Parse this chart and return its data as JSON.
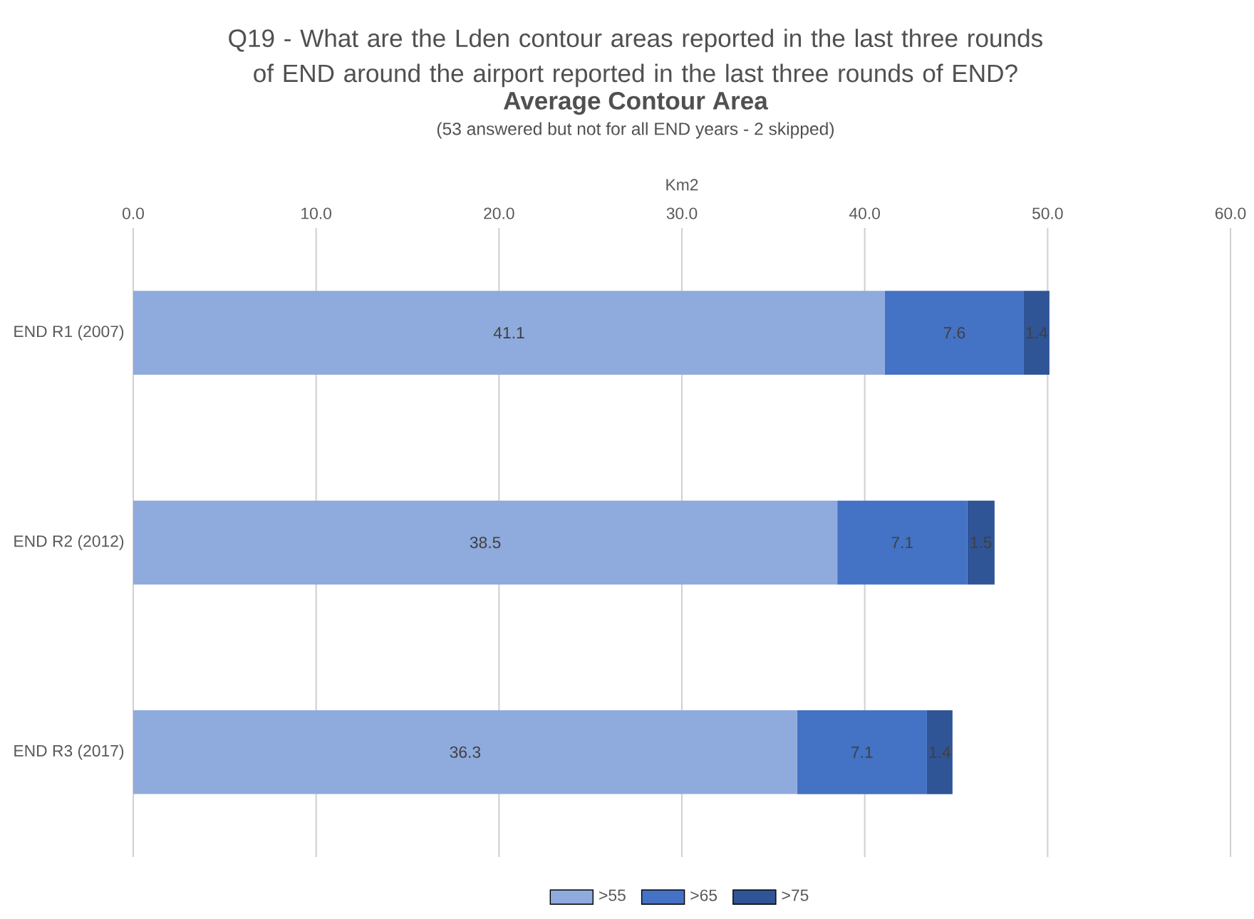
{
  "chart_data": {
    "type": "bar",
    "orientation": "horizontal",
    "stacked": true,
    "title": "Q19 - What are the Lden contour areas reported in the last three rounds of END around the airport reported in the last three rounds of END?",
    "subtitle": "Average Contour Area",
    "annotations": [
      "(53 answered but not for all END years - 2 skipped)"
    ],
    "xlabel": "Km2",
    "categories": [
      "END R1 (2007)",
      "END R2 (2012)",
      "END R3 (2017)"
    ],
    "series": [
      {
        "name": ">55",
        "color": "#8faadc",
        "values": [
          41.1,
          38.5,
          36.3
        ]
      },
      {
        "name": ">65",
        "color": "#4472c4",
        "values": [
          7.6,
          7.1,
          7.1
        ]
      },
      {
        "name": ">75",
        "color": "#2f5597",
        "values": [
          1.4,
          1.5,
          1.4
        ]
      }
    ],
    "xlim": [
      0,
      60
    ],
    "xticks": [
      {
        "value": 0,
        "label": "0.0"
      },
      {
        "value": 10,
        "label": "10.0"
      },
      {
        "value": 20,
        "label": "20.0"
      },
      {
        "value": 30,
        "label": "30.0"
      },
      {
        "value": 40,
        "label": "40.0"
      },
      {
        "value": 50,
        "label": "50.0"
      },
      {
        "value": 60,
        "label": "60.0"
      }
    ],
    "grid": "x",
    "legend": "bottom",
    "data_labels": true
  }
}
